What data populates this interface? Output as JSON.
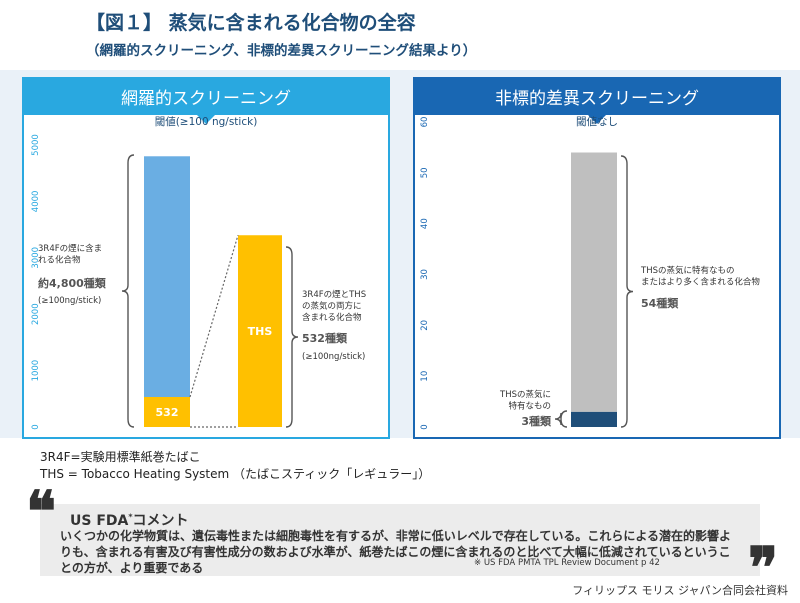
{
  "header": {
    "title": "【図１】 蒸気に含まれる化合物の全容",
    "subtitle": "（網羅的スクリーニング、非標的差異スクリーニング結果より）"
  },
  "chart_data": [
    {
      "type": "bar",
      "title": "網羅的スクリーニング",
      "subtitle": "閾値(≥100 ng/stick)",
      "ylim": [
        0,
        5000
      ],
      "yticks": [
        "0",
        "1000",
        "2000",
        "3000",
        "4000",
        "5000"
      ],
      "bars": [
        {
          "name": "3R4F",
          "segments": [
            {
              "value": 532,
              "label": "532",
              "color": "#ffc000"
            },
            {
              "value": 4268,
              "label": "",
              "color": "#6aaee3"
            }
          ]
        },
        {
          "name": "THS",
          "segments": [
            {
              "value": 3400,
              "label": "THS",
              "color": "#ffc000"
            }
          ]
        }
      ],
      "annotations": [
        {
          "id": "a1",
          "lines": [
            "3R4Fの煙に含ま",
            "れる化合物"
          ]
        },
        {
          "id": "a1v",
          "text": "約4,800種類"
        },
        {
          "id": "a1t",
          "text": "(≥100ng/stick)"
        },
        {
          "id": "a2",
          "lines": [
            "3R4Fの煙とTHS",
            "の蒸気の両方に",
            "含まれる化合物"
          ]
        },
        {
          "id": "a2v",
          "text": "532種類"
        },
        {
          "id": "a2t",
          "text": "(≥100ng/stick)"
        }
      ],
      "colors": {
        "border": "#29a8e0",
        "accent": "#6aaee3",
        "highlight": "#ffc000"
      }
    },
    {
      "type": "bar",
      "title": "非標的差異スクリーニング",
      "subtitle": "閾値なし",
      "ylim": [
        0,
        60
      ],
      "yticks": [
        "0",
        "10",
        "20",
        "30",
        "40",
        "50",
        "60"
      ],
      "bars": [
        {
          "name": "THS",
          "segments": [
            {
              "value": 3,
              "label": "",
              "color": "#1f4e79"
            },
            {
              "value": 51,
              "label": "",
              "color": "#bfbfbf"
            }
          ]
        }
      ],
      "annotations": [
        {
          "id": "b1",
          "lines": [
            "THSの蒸気に特有なもの",
            "またはより多く含まれる化合物"
          ]
        },
        {
          "id": "b1v",
          "text": "54種類"
        },
        {
          "id": "b2",
          "lines": [
            "THSの蒸気に",
            "特有なもの"
          ]
        },
        {
          "id": "b2v",
          "text": "3種類"
        }
      ],
      "colors": {
        "border": "#1967b3",
        "accent": "#bfbfbf",
        "highlight": "#1f4e79"
      }
    }
  ],
  "notes": {
    "line1": "3R4F=実験用標準紙巻たばこ",
    "line2": "THS = Tobacco Heating System （たばこスティック「レギュラー」）"
  },
  "comment": {
    "quote_open": "❝",
    "quote_close": "❞",
    "title": "US FDA",
    "title_mark": "*",
    "title_suffix": "コメント",
    "body": "いくつかの化学物質は、遺伝毒性または細胞毒性を有するが、非常に低いレベルで存在している。これらによる潜在的影響よりも、含まれる有害及び有害性成分の数および水準が、紙巻たばこの煙に含まれるのと比べて大幅に低減されているということの方が、より重要である",
    "reference": "※ US FDA PMTA TPL Review   Document p 42"
  },
  "footer": {
    "credit": "フィリップス モリス ジャパン合同会社資料"
  }
}
